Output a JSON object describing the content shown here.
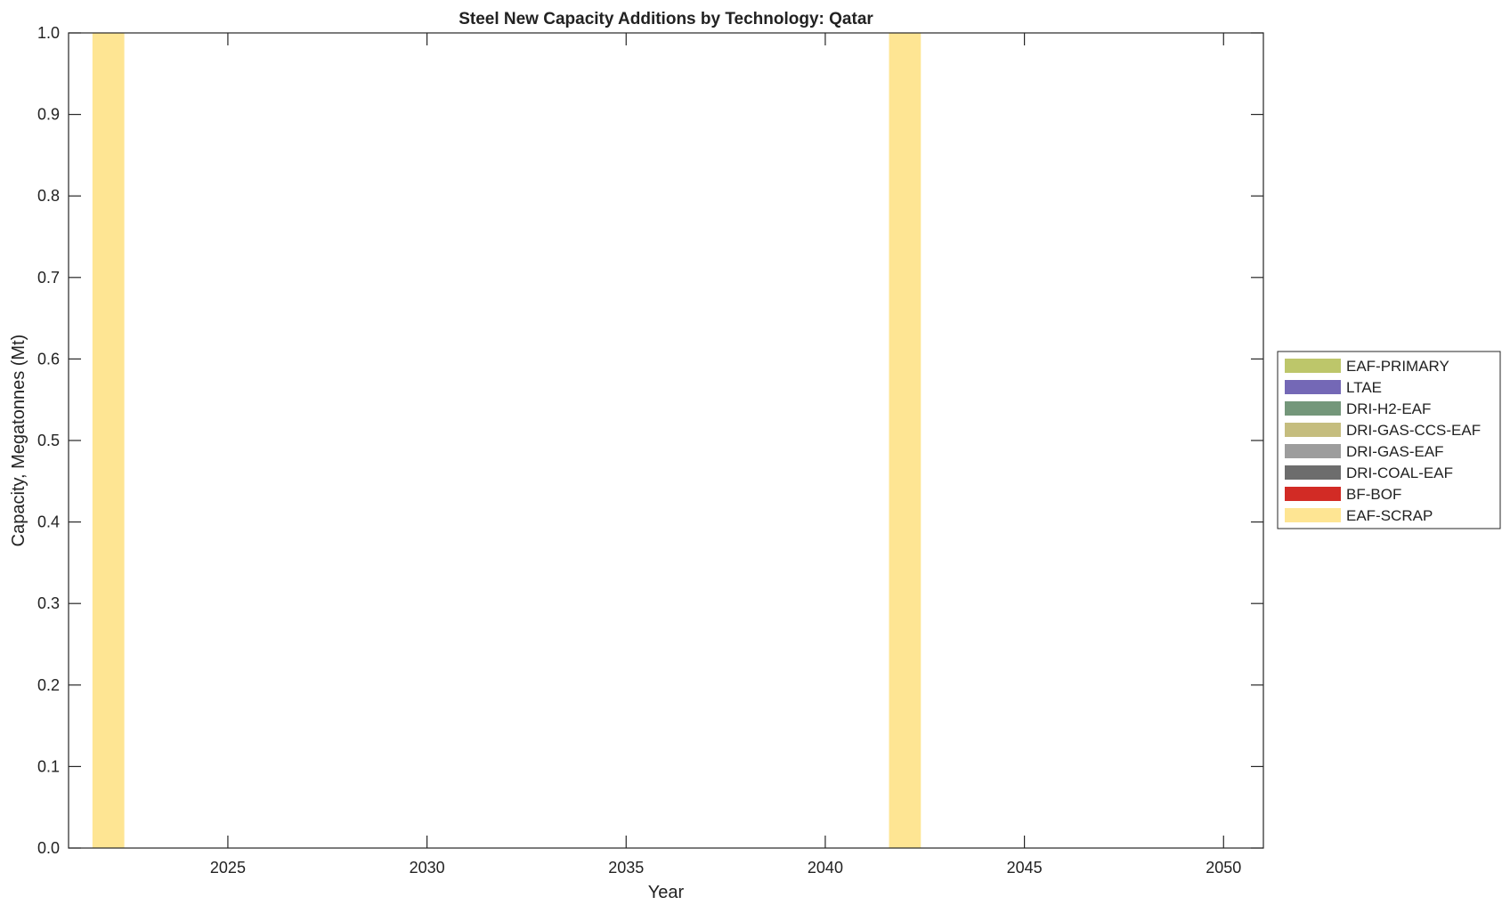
{
  "chart_data": {
    "type": "bar",
    "stacked": true,
    "title": "Steel New Capacity Additions by Technology: Qatar",
    "xlabel": "Year",
    "ylabel": "Capacity, Megatonnes (Mt)",
    "xlim": [
      2021,
      2051
    ],
    "ylim": [
      0,
      1
    ],
    "xticks": [
      2025,
      2030,
      2035,
      2040,
      2045,
      2050
    ],
    "yticks": [
      "0.0",
      "0.1",
      "0.2",
      "0.3",
      "0.4",
      "0.5",
      "0.6",
      "0.7",
      "0.8",
      "0.9",
      "1.0"
    ],
    "grid": false,
    "legend_placement": "right",
    "x": [
      2022,
      2042
    ],
    "series": [
      {
        "name": "EAF-SCRAP",
        "color": "#fee593",
        "values": [
          1,
          1
        ]
      },
      {
        "name": "BF-BOF",
        "color": "#d22b25",
        "values": [
          0,
          0
        ]
      },
      {
        "name": "DRI-COAL-EAF",
        "color": "#6d6d6d",
        "values": [
          0,
          0
        ]
      },
      {
        "name": "DRI-GAS-EAF",
        "color": "#9d9d9d",
        "values": [
          0,
          0
        ]
      },
      {
        "name": "DRI-GAS-CCS-EAF",
        "color": "#c5bd7e",
        "values": [
          0,
          0
        ]
      },
      {
        "name": "DRI-H2-EAF",
        "color": "#74977a",
        "values": [
          0,
          0
        ]
      },
      {
        "name": "LTAE",
        "color": "#7468b6",
        "values": [
          0,
          0
        ]
      },
      {
        "name": "EAF-PRIMARY",
        "color": "#bdc66a",
        "values": [
          0,
          0
        ]
      }
    ],
    "legend_order": [
      "EAF-PRIMARY",
      "LTAE",
      "DRI-H2-EAF",
      "DRI-GAS-CCS-EAF",
      "DRI-GAS-EAF",
      "DRI-COAL-EAF",
      "BF-BOF",
      "EAF-SCRAP"
    ]
  }
}
